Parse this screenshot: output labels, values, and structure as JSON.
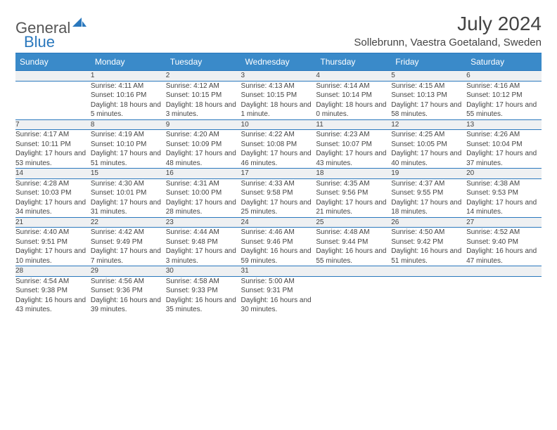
{
  "logo": {
    "text1": "General",
    "text2": "Blue"
  },
  "title": "July 2024",
  "subtitle": "Sollebrunn, Vaestra Goetaland, Sweden",
  "colors": {
    "header_bg": "#3a8ac9",
    "header_text": "#ffffff",
    "daynum_bg": "#eef0f2",
    "border": "#2a78bd",
    "logo_accent": "#2a78bd"
  },
  "day_headers": [
    "Sunday",
    "Monday",
    "Tuesday",
    "Wednesday",
    "Thursday",
    "Friday",
    "Saturday"
  ],
  "weeks": [
    [
      {
        "n": "",
        "sr": "",
        "ss": "",
        "dl": ""
      },
      {
        "n": "1",
        "sr": "Sunrise: 4:11 AM",
        "ss": "Sunset: 10:16 PM",
        "dl": "Daylight: 18 hours and 5 minutes."
      },
      {
        "n": "2",
        "sr": "Sunrise: 4:12 AM",
        "ss": "Sunset: 10:15 PM",
        "dl": "Daylight: 18 hours and 3 minutes."
      },
      {
        "n": "3",
        "sr": "Sunrise: 4:13 AM",
        "ss": "Sunset: 10:15 PM",
        "dl": "Daylight: 18 hours and 1 minute."
      },
      {
        "n": "4",
        "sr": "Sunrise: 4:14 AM",
        "ss": "Sunset: 10:14 PM",
        "dl": "Daylight: 18 hours and 0 minutes."
      },
      {
        "n": "5",
        "sr": "Sunrise: 4:15 AM",
        "ss": "Sunset: 10:13 PM",
        "dl": "Daylight: 17 hours and 58 minutes."
      },
      {
        "n": "6",
        "sr": "Sunrise: 4:16 AM",
        "ss": "Sunset: 10:12 PM",
        "dl": "Daylight: 17 hours and 55 minutes."
      }
    ],
    [
      {
        "n": "7",
        "sr": "Sunrise: 4:17 AM",
        "ss": "Sunset: 10:11 PM",
        "dl": "Daylight: 17 hours and 53 minutes."
      },
      {
        "n": "8",
        "sr": "Sunrise: 4:19 AM",
        "ss": "Sunset: 10:10 PM",
        "dl": "Daylight: 17 hours and 51 minutes."
      },
      {
        "n": "9",
        "sr": "Sunrise: 4:20 AM",
        "ss": "Sunset: 10:09 PM",
        "dl": "Daylight: 17 hours and 48 minutes."
      },
      {
        "n": "10",
        "sr": "Sunrise: 4:22 AM",
        "ss": "Sunset: 10:08 PM",
        "dl": "Daylight: 17 hours and 46 minutes."
      },
      {
        "n": "11",
        "sr": "Sunrise: 4:23 AM",
        "ss": "Sunset: 10:07 PM",
        "dl": "Daylight: 17 hours and 43 minutes."
      },
      {
        "n": "12",
        "sr": "Sunrise: 4:25 AM",
        "ss": "Sunset: 10:05 PM",
        "dl": "Daylight: 17 hours and 40 minutes."
      },
      {
        "n": "13",
        "sr": "Sunrise: 4:26 AM",
        "ss": "Sunset: 10:04 PM",
        "dl": "Daylight: 17 hours and 37 minutes."
      }
    ],
    [
      {
        "n": "14",
        "sr": "Sunrise: 4:28 AM",
        "ss": "Sunset: 10:03 PM",
        "dl": "Daylight: 17 hours and 34 minutes."
      },
      {
        "n": "15",
        "sr": "Sunrise: 4:30 AM",
        "ss": "Sunset: 10:01 PM",
        "dl": "Daylight: 17 hours and 31 minutes."
      },
      {
        "n": "16",
        "sr": "Sunrise: 4:31 AM",
        "ss": "Sunset: 10:00 PM",
        "dl": "Daylight: 17 hours and 28 minutes."
      },
      {
        "n": "17",
        "sr": "Sunrise: 4:33 AM",
        "ss": "Sunset: 9:58 PM",
        "dl": "Daylight: 17 hours and 25 minutes."
      },
      {
        "n": "18",
        "sr": "Sunrise: 4:35 AM",
        "ss": "Sunset: 9:56 PM",
        "dl": "Daylight: 17 hours and 21 minutes."
      },
      {
        "n": "19",
        "sr": "Sunrise: 4:37 AM",
        "ss": "Sunset: 9:55 PM",
        "dl": "Daylight: 17 hours and 18 minutes."
      },
      {
        "n": "20",
        "sr": "Sunrise: 4:38 AM",
        "ss": "Sunset: 9:53 PM",
        "dl": "Daylight: 17 hours and 14 minutes."
      }
    ],
    [
      {
        "n": "21",
        "sr": "Sunrise: 4:40 AM",
        "ss": "Sunset: 9:51 PM",
        "dl": "Daylight: 17 hours and 10 minutes."
      },
      {
        "n": "22",
        "sr": "Sunrise: 4:42 AM",
        "ss": "Sunset: 9:49 PM",
        "dl": "Daylight: 17 hours and 7 minutes."
      },
      {
        "n": "23",
        "sr": "Sunrise: 4:44 AM",
        "ss": "Sunset: 9:48 PM",
        "dl": "Daylight: 17 hours and 3 minutes."
      },
      {
        "n": "24",
        "sr": "Sunrise: 4:46 AM",
        "ss": "Sunset: 9:46 PM",
        "dl": "Daylight: 16 hours and 59 minutes."
      },
      {
        "n": "25",
        "sr": "Sunrise: 4:48 AM",
        "ss": "Sunset: 9:44 PM",
        "dl": "Daylight: 16 hours and 55 minutes."
      },
      {
        "n": "26",
        "sr": "Sunrise: 4:50 AM",
        "ss": "Sunset: 9:42 PM",
        "dl": "Daylight: 16 hours and 51 minutes."
      },
      {
        "n": "27",
        "sr": "Sunrise: 4:52 AM",
        "ss": "Sunset: 9:40 PM",
        "dl": "Daylight: 16 hours and 47 minutes."
      }
    ],
    [
      {
        "n": "28",
        "sr": "Sunrise: 4:54 AM",
        "ss": "Sunset: 9:38 PM",
        "dl": "Daylight: 16 hours and 43 minutes."
      },
      {
        "n": "29",
        "sr": "Sunrise: 4:56 AM",
        "ss": "Sunset: 9:36 PM",
        "dl": "Daylight: 16 hours and 39 minutes."
      },
      {
        "n": "30",
        "sr": "Sunrise: 4:58 AM",
        "ss": "Sunset: 9:33 PM",
        "dl": "Daylight: 16 hours and 35 minutes."
      },
      {
        "n": "31",
        "sr": "Sunrise: 5:00 AM",
        "ss": "Sunset: 9:31 PM",
        "dl": "Daylight: 16 hours and 30 minutes."
      },
      {
        "n": "",
        "sr": "",
        "ss": "",
        "dl": ""
      },
      {
        "n": "",
        "sr": "",
        "ss": "",
        "dl": ""
      },
      {
        "n": "",
        "sr": "",
        "ss": "",
        "dl": ""
      }
    ]
  ]
}
